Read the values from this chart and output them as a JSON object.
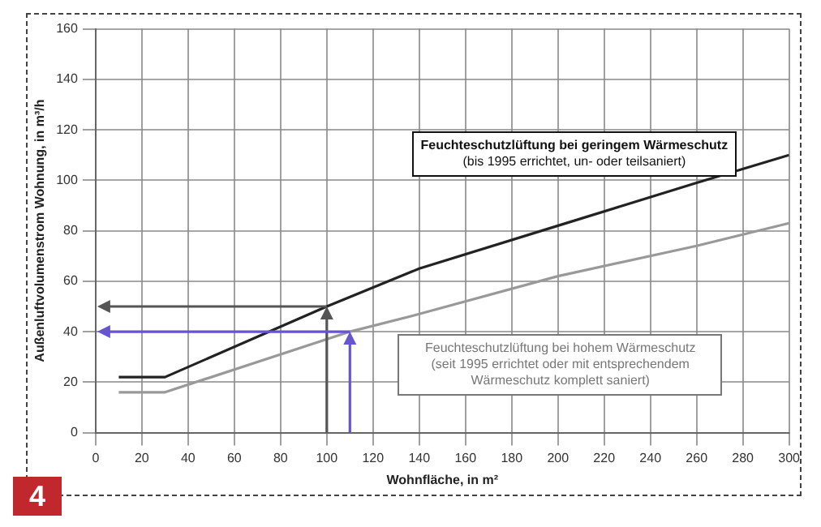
{
  "chart_data": {
    "type": "line",
    "xlabel": "Wohnfläche, in m²",
    "ylabel": "Außenluftvolumenstrom Wohnung, in m³/h",
    "xlim": [
      0,
      300
    ],
    "xticks": [
      0,
      20,
      40,
      60,
      80,
      100,
      120,
      140,
      160,
      180,
      200,
      220,
      240,
      260,
      280,
      300
    ],
    "ylim": [
      0,
      160
    ],
    "yticks": [
      0,
      20,
      40,
      60,
      80,
      100,
      120,
      140,
      160
    ],
    "grid": true,
    "legend": false,
    "marker": "none",
    "line_style": "solid",
    "series": [
      {
        "name": "Feuchteschutzlüftung bei geringem Wärmeschutz",
        "color": "#222222",
        "x": [
          10,
          30,
          100,
          140,
          200,
          260,
          300
        ],
        "values": [
          22,
          22,
          50,
          65,
          82,
          99,
          110
        ]
      },
      {
        "name": "Feuchteschutzlüftung bei hohem Wärmeschutz",
        "color": "#999999",
        "x": [
          10,
          30,
          110,
          140,
          200,
          260,
          300
        ],
        "values": [
          16,
          16,
          40,
          47,
          62,
          74,
          83
        ]
      }
    ],
    "annotations": [
      "(bis 1995 errichtet, un- oder teilsaniert)",
      "(seit 1995 errichtet oder mit entsprechendem Wärmeschutz komplett saniert)",
      "4"
    ]
  }
}
